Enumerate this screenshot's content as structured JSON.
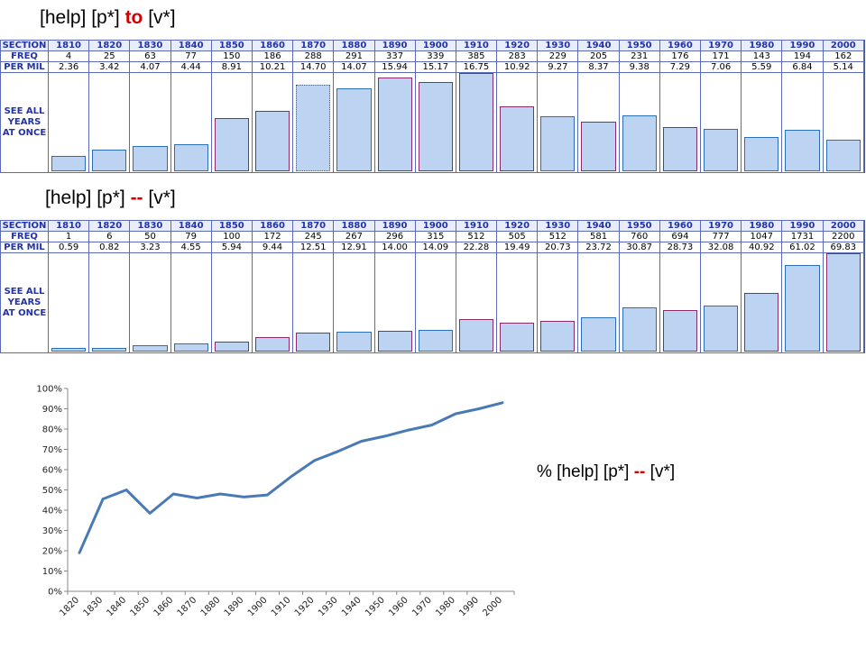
{
  "colors": {
    "accent": "#d40000",
    "header_text": "#2233aa",
    "bar_fill": "#bcd3f2",
    "line": "#4a7ab5"
  },
  "panel1": {
    "title_pre": "[help] [p*] ",
    "title_hl": "to",
    "title_post": " [v*]",
    "row_section": "SECTION",
    "row_freq": "FREQ",
    "row_permil": "PER MIL",
    "see_all": "SEE ALL YEARS AT ONCE",
    "sections": [
      "1810",
      "1820",
      "1830",
      "1840",
      "1850",
      "1860",
      "1870",
      "1880",
      "1890",
      "1900",
      "1910",
      "1920",
      "1930",
      "1940",
      "1950",
      "1960",
      "1970",
      "1980",
      "1990",
      "2000"
    ],
    "freq": [
      "4",
      "25",
      "63",
      "77",
      "150",
      "186",
      "288",
      "291",
      "337",
      "339",
      "385",
      "283",
      "229",
      "205",
      "231",
      "176",
      "171",
      "143",
      "194",
      "162"
    ],
    "permil": [
      "2.36",
      "3.42",
      "4.07",
      "4.44",
      "8.91",
      "10.21",
      "14.70",
      "14.07",
      "15.94",
      "15.17",
      "16.75",
      "10.92",
      "9.27",
      "8.37",
      "9.38",
      "7.29",
      "7.06",
      "5.59",
      "6.84",
      "5.14"
    ]
  },
  "panel2": {
    "title_pre": "[help] [p*] ",
    "title_hl": "--",
    "title_post": " [v*]",
    "row_section": "SECTION",
    "row_freq": "FREQ",
    "row_permil": "PER MIL",
    "see_all": "SEE ALL YEARS AT ONCE",
    "sections": [
      "1810",
      "1820",
      "1830",
      "1840",
      "1850",
      "1860",
      "1870",
      "1880",
      "1890",
      "1900",
      "1910",
      "1920",
      "1930",
      "1940",
      "1950",
      "1960",
      "1970",
      "1980",
      "1990",
      "2000"
    ],
    "freq": [
      "1",
      "6",
      "50",
      "79",
      "100",
      "172",
      "245",
      "267",
      "296",
      "315",
      "512",
      "505",
      "512",
      "581",
      "760",
      "694",
      "777",
      "1047",
      "1731",
      "2200"
    ],
    "permil": [
      "0.59",
      "0.82",
      "3.23",
      "4.55",
      "5.94",
      "9.44",
      "12.51",
      "12.91",
      "14.00",
      "14.09",
      "22.28",
      "19.49",
      "20.73",
      "23.72",
      "30.87",
      "28.73",
      "32.08",
      "40.92",
      "61.02",
      "69.83"
    ]
  },
  "chart_data": {
    "type": "line",
    "title": "% [help] [p*] -- [v*]",
    "title_pre": "% [help] [p*] ",
    "title_hl": "--",
    "title_post": " [v*]",
    "x": [
      "1820",
      "1830",
      "1840",
      "1850",
      "1860",
      "1870",
      "1880",
      "1890",
      "1900",
      "1910",
      "1920",
      "1930",
      "1940",
      "1950",
      "1960",
      "1970",
      "1980",
      "1990",
      "2000"
    ],
    "values": [
      19,
      45.5,
      50,
      38.5,
      48,
      46,
      48,
      46.5,
      47.5,
      56.5,
      64.5,
      69,
      74,
      76.5,
      79.5,
      82,
      87.5,
      90,
      93
    ],
    "ylim": [
      0,
      100
    ],
    "yticks": [
      "0%",
      "10%",
      "20%",
      "30%",
      "40%",
      "50%",
      "60%",
      "70%",
      "80%",
      "90%",
      "100%"
    ],
    "grid": false,
    "legend": "none"
  }
}
